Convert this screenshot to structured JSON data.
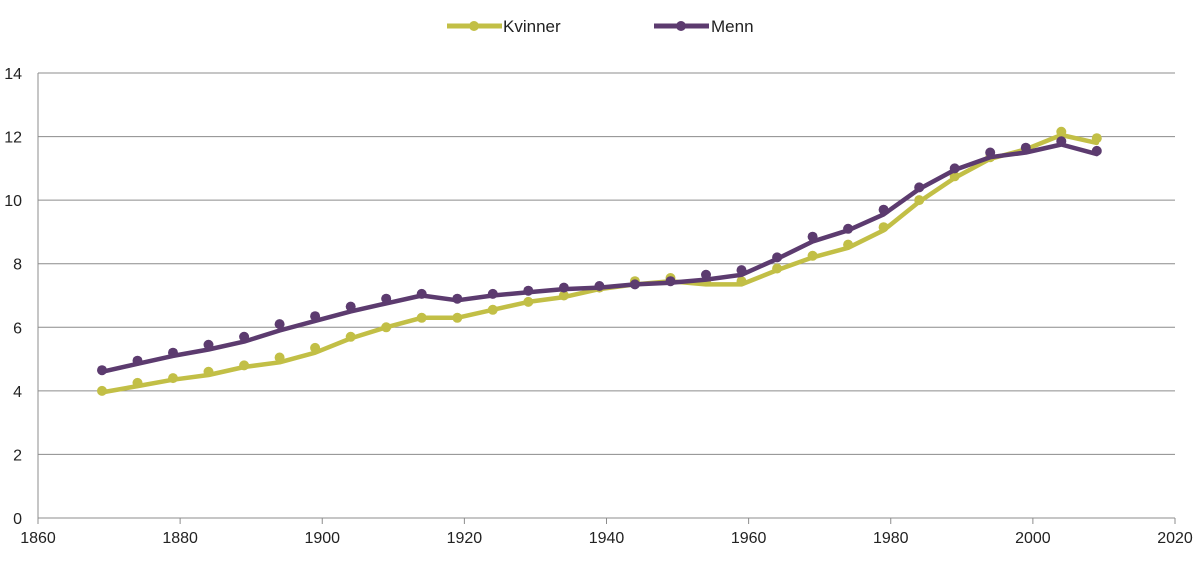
{
  "chart_data": {
    "type": "line",
    "title": "",
    "xlabel": "",
    "ylabel": "",
    "xlim": [
      1860,
      2020
    ],
    "ylim": [
      0,
      14
    ],
    "x_ticks": [
      "1860",
      "1880",
      "1900",
      "1920",
      "1940",
      "1960",
      "1980",
      "2000",
      "2020"
    ],
    "y_ticks": [
      "0",
      "2",
      "4",
      "6",
      "8",
      "10",
      "12",
      "14"
    ],
    "grid": true,
    "legend_position": "top-center",
    "series": [
      {
        "name": "Kvinner",
        "color": "#c2bf46",
        "line_points": [
          [
            1869,
            3.95
          ],
          [
            1874,
            4.15
          ],
          [
            1879,
            4.35
          ],
          [
            1884,
            4.5
          ],
          [
            1889,
            4.75
          ],
          [
            1894,
            4.9
          ],
          [
            1899,
            5.2
          ],
          [
            1904,
            5.65
          ],
          [
            1909,
            6.0
          ],
          [
            1914,
            6.3
          ],
          [
            1919,
            6.3
          ],
          [
            1924,
            6.55
          ],
          [
            1929,
            6.8
          ],
          [
            1934,
            6.95
          ],
          [
            1939,
            7.2
          ],
          [
            1944,
            7.35
          ],
          [
            1949,
            7.45
          ],
          [
            1954,
            7.35
          ],
          [
            1959,
            7.35
          ],
          [
            1964,
            7.8
          ],
          [
            1969,
            8.2
          ],
          [
            1974,
            8.5
          ],
          [
            1979,
            9.05
          ],
          [
            1984,
            9.95
          ],
          [
            1989,
            10.7
          ],
          [
            1994,
            11.3
          ],
          [
            1999,
            11.6
          ],
          [
            2004,
            12.05
          ],
          [
            2009,
            11.8
          ]
        ],
        "marker_points": [
          [
            1869,
            4.0
          ],
          [
            1874,
            4.25
          ],
          [
            1879,
            4.4
          ],
          [
            1884,
            4.6
          ],
          [
            1889,
            4.8
          ],
          [
            1894,
            5.05
          ],
          [
            1899,
            5.35
          ],
          [
            1904,
            5.7
          ],
          [
            1909,
            6.0
          ],
          [
            1914,
            6.3
          ],
          [
            1919,
            6.3
          ],
          [
            1924,
            6.55
          ],
          [
            1929,
            6.8
          ],
          [
            1934,
            7.0
          ],
          [
            1939,
            7.25
          ],
          [
            1944,
            7.45
          ],
          [
            1949,
            7.55
          ],
          [
            1954,
            7.45
          ],
          [
            1959,
            7.45
          ],
          [
            1964,
            7.85
          ],
          [
            1969,
            8.25
          ],
          [
            1974,
            8.6
          ],
          [
            1979,
            9.15
          ],
          [
            1984,
            10.0
          ],
          [
            1989,
            10.75
          ],
          [
            1994,
            11.35
          ],
          [
            1999,
            11.6
          ],
          [
            2004,
            12.15
          ],
          [
            2009,
            11.95
          ]
        ]
      },
      {
        "name": "Menn",
        "color": "#5c3b6f",
        "line_points": [
          [
            1869,
            4.6
          ],
          [
            1874,
            4.85
          ],
          [
            1879,
            5.1
          ],
          [
            1884,
            5.3
          ],
          [
            1889,
            5.55
          ],
          [
            1894,
            5.9
          ],
          [
            1899,
            6.2
          ],
          [
            1904,
            6.5
          ],
          [
            1909,
            6.75
          ],
          [
            1914,
            7.0
          ],
          [
            1919,
            6.85
          ],
          [
            1924,
            7.0
          ],
          [
            1929,
            7.1
          ],
          [
            1934,
            7.2
          ],
          [
            1939,
            7.25
          ],
          [
            1944,
            7.35
          ],
          [
            1949,
            7.4
          ],
          [
            1954,
            7.5
          ],
          [
            1959,
            7.65
          ],
          [
            1964,
            8.15
          ],
          [
            1969,
            8.7
          ],
          [
            1974,
            9.05
          ],
          [
            1979,
            9.55
          ],
          [
            1984,
            10.35
          ],
          [
            1989,
            10.95
          ],
          [
            1994,
            11.35
          ],
          [
            1999,
            11.5
          ],
          [
            2004,
            11.75
          ],
          [
            2009,
            11.45
          ]
        ],
        "marker_points": [
          [
            1869,
            4.65
          ],
          [
            1874,
            4.95
          ],
          [
            1879,
            5.2
          ],
          [
            1884,
            5.45
          ],
          [
            1889,
            5.7
          ],
          [
            1894,
            6.1
          ],
          [
            1899,
            6.35
          ],
          [
            1904,
            6.65
          ],
          [
            1909,
            6.9
          ],
          [
            1914,
            7.05
          ],
          [
            1919,
            6.9
          ],
          [
            1924,
            7.05
          ],
          [
            1929,
            7.15
          ],
          [
            1934,
            7.25
          ],
          [
            1939,
            7.3
          ],
          [
            1944,
            7.35
          ],
          [
            1949,
            7.45
          ],
          [
            1954,
            7.65
          ],
          [
            1959,
            7.8
          ],
          [
            1964,
            8.2
          ],
          [
            1969,
            8.85
          ],
          [
            1974,
            9.1
          ],
          [
            1979,
            9.7
          ],
          [
            1984,
            10.4
          ],
          [
            1989,
            11.0
          ],
          [
            1994,
            11.5
          ],
          [
            1999,
            11.65
          ],
          [
            2004,
            11.85
          ],
          [
            2009,
            11.55
          ]
        ]
      }
    ]
  }
}
